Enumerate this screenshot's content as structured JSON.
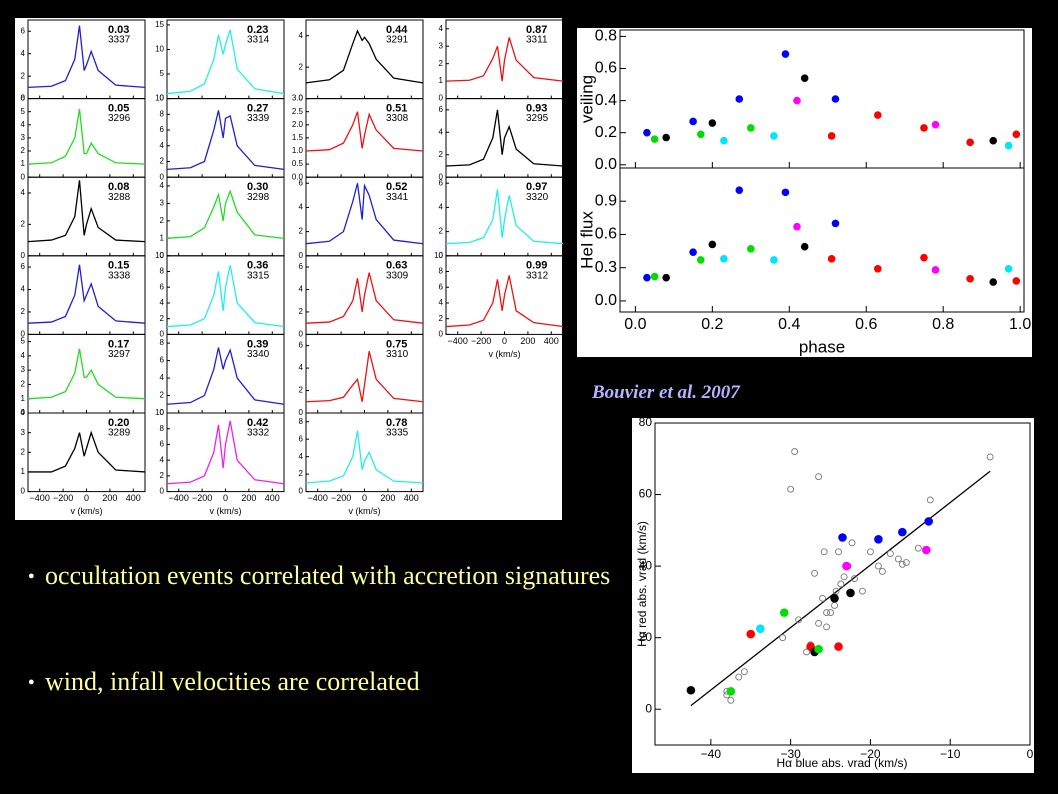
{
  "chart_data": [
    {
      "type": "line",
      "xlabel": "v (km/s)",
      "x": [
        -500,
        -300,
        -180,
        -100,
        -60,
        -20,
        0,
        40,
        100,
        250,
        500
      ],
      "xlim": [
        -500,
        500
      ],
      "xticks": [
        {
          "value": -400,
          "label": "−400"
        },
        {
          "value": -200,
          "label": "−200"
        },
        0,
        200,
        400
      ],
      "panels": [
        {
          "phase": "0.03",
          "id": "3337",
          "color": "#1f1fd6",
          "ylim": [
            0,
            7
          ],
          "yticks": [
            0,
            2,
            4,
            6
          ],
          "values": [
            1,
            1.1,
            1.6,
            3.5,
            6.5,
            2.5,
            3,
            4.2,
            2.5,
            1.2,
            1
          ]
        },
        {
          "phase": "0.05",
          "id": "3296",
          "color": "#22dd22",
          "ylim": [
            0,
            6
          ],
          "yticks": [
            0,
            1,
            2,
            3,
            4,
            5,
            6
          ],
          "values": [
            1,
            1.1,
            1.6,
            3,
            5.2,
            1.8,
            1.8,
            2.6,
            1.8,
            1.1,
            1
          ]
        },
        {
          "phase": "0.08",
          "id": "3288",
          "color": "#000000",
          "ylim": [
            0,
            5
          ],
          "yticks": [
            0,
            2,
            4
          ],
          "values": [
            0.9,
            1,
            1.3,
            2.5,
            4.8,
            1.3,
            2,
            3,
            1.8,
            1,
            0.9
          ]
        },
        {
          "phase": "0.15",
          "id": "3338",
          "color": "#1f1fd6",
          "ylim": [
            0,
            7
          ],
          "yticks": [
            0,
            2,
            4,
            6
          ],
          "values": [
            1,
            1.1,
            1.6,
            3.5,
            6.2,
            3,
            3.5,
            4.5,
            2.5,
            1.2,
            1
          ]
        },
        {
          "phase": "0.17",
          "id": "3297",
          "color": "#22dd22",
          "ylim": [
            0,
            5.5
          ],
          "yticks": [
            0,
            1,
            2,
            3,
            4,
            5
          ],
          "values": [
            1,
            1.1,
            1.5,
            2.8,
            4.5,
            2.5,
            2.5,
            3,
            2,
            1.1,
            1
          ]
        },
        {
          "phase": "0.20",
          "id": "3289",
          "color": "#000000",
          "ylim": [
            0,
            4
          ],
          "yticks": [
            0,
            1,
            2,
            3,
            4
          ],
          "values": [
            1,
            1,
            1.3,
            2.2,
            3,
            1.8,
            2.2,
            3,
            2,
            1.1,
            1
          ]
        },
        {
          "phase": "0.23",
          "id": "3314",
          "color": "#22eeee",
          "ylim": [
            0,
            16
          ],
          "yticks": [
            0,
            5,
            10,
            15
          ],
          "values": [
            1,
            1.5,
            3,
            8,
            13,
            9,
            11,
            14,
            6,
            2,
            1
          ]
        },
        {
          "phase": "0.27",
          "id": "3339",
          "color": "#1f1fd6",
          "ylim": [
            0,
            10
          ],
          "yticks": [
            0,
            2,
            4,
            6,
            8,
            10
          ],
          "values": [
            1,
            1.2,
            2,
            6,
            8.5,
            5,
            7.5,
            7.8,
            4,
            1.5,
            1
          ]
        },
        {
          "phase": "0.30",
          "id": "3298",
          "color": "#22dd22",
          "ylim": [
            0,
            4.5
          ],
          "yticks": [
            0,
            1,
            2,
            3,
            4
          ],
          "values": [
            1,
            1.1,
            1.6,
            2.8,
            3.5,
            2,
            3,
            3.7,
            2.5,
            1.2,
            1
          ]
        },
        {
          "phase": "0.36",
          "id": "3315",
          "color": "#22eeee",
          "ylim": [
            0,
            10
          ],
          "yticks": [
            0,
            2,
            4,
            6,
            8,
            10
          ],
          "values": [
            1,
            1.2,
            2,
            5,
            8,
            3,
            6,
            8.8,
            4,
            1.5,
            1
          ]
        },
        {
          "phase": "0.39",
          "id": "3340",
          "color": "#1f1fd6",
          "ylim": [
            0,
            9
          ],
          "yticks": [
            0,
            2,
            4,
            6,
            8
          ],
          "values": [
            1,
            1.2,
            2,
            5,
            7.5,
            5,
            6,
            7.2,
            4,
            1.5,
            1
          ]
        },
        {
          "phase": "0.42",
          "id": "3332",
          "color": "#ee22ee",
          "ylim": [
            0,
            10
          ],
          "yticks": [
            0,
            2,
            4,
            6,
            8,
            10
          ],
          "values": [
            1,
            1.2,
            2,
            5,
            8.5,
            3,
            6,
            9,
            4,
            1.5,
            1
          ]
        },
        {
          "phase": "0.44",
          "id": "3291",
          "color": "#000000",
          "ylim": [
            0,
            5
          ],
          "yticks": [
            0,
            2,
            4
          ],
          "values": [
            1,
            1.2,
            1.8,
            3.5,
            4.3,
            3.7,
            3.9,
            3.5,
            2.5,
            1.3,
            1
          ]
        },
        {
          "phase": "0.51",
          "id": "3308",
          "color": "#ee1111",
          "ylim": [
            0,
            3
          ],
          "yticks": [
            {
              "value": 0,
              "label": "0.0"
            },
            0.5,
            {
              "value": 1,
              "label": "1.0"
            },
            1.5,
            {
              "value": 2,
              "label": "2.0"
            },
            2.5,
            {
              "value": 3,
              "label": "3.0"
            }
          ],
          "values": [
            1,
            1.05,
            1.3,
            2,
            2.5,
            1.1,
            1.6,
            2.4,
            1.8,
            1.1,
            1
          ]
        },
        {
          "phase": "0.52",
          "id": "3341",
          "color": "#1f1fd6",
          "ylim": [
            0,
            6.5
          ],
          "yticks": [
            0,
            2,
            4,
            6
          ],
          "values": [
            1,
            1.2,
            2,
            4.5,
            6,
            3,
            5.8,
            5,
            3,
            1.3,
            1
          ]
        },
        {
          "phase": "0.63",
          "id": "3309",
          "color": "#ee1111",
          "ylim": [
            0,
            7
          ],
          "yticks": [
            0,
            2,
            4,
            6
          ],
          "values": [
            1,
            1.1,
            1.6,
            3,
            5,
            2,
            3.5,
            5.5,
            3,
            1.3,
            1
          ]
        },
        {
          "phase": "0.75",
          "id": "3310",
          "color": "#ee1111",
          "ylim": [
            0,
            7
          ],
          "yticks": [
            0,
            2,
            4,
            6
          ],
          "values": [
            1,
            1.1,
            1.4,
            2.5,
            3,
            1,
            2.5,
            5.5,
            3,
            1.3,
            1
          ]
        },
        {
          "phase": "0.78",
          "id": "3335",
          "color": "#22eeee",
          "ylim": [
            0,
            9
          ],
          "yticks": [
            0,
            2,
            4,
            6,
            8
          ],
          "values": [
            1,
            1.2,
            1.8,
            4,
            7,
            2.5,
            3.5,
            4.5,
            2.5,
            1.2,
            1
          ]
        },
        {
          "phase": "0.87",
          "id": "3311",
          "color": "#ee1111",
          "ylim": [
            0,
            4.5
          ],
          "yticks": [
            0,
            1,
            2,
            3,
            4
          ],
          "values": [
            1,
            1.05,
            1.3,
            2.3,
            3,
            1,
            2.2,
            3.5,
            2.2,
            1.2,
            1
          ]
        },
        {
          "phase": "0.93",
          "id": "3295",
          "color": "#000000",
          "ylim": [
            0,
            7
          ],
          "yticks": [
            0,
            2,
            4,
            6
          ],
          "values": [
            1,
            1.1,
            1.6,
            3.5,
            6,
            2,
            3.5,
            4.5,
            2.5,
            1.2,
            1
          ]
        },
        {
          "phase": "0.97",
          "id": "3320",
          "color": "#22eeee",
          "ylim": [
            0,
            6.5
          ],
          "yticks": [
            0,
            2,
            4,
            6
          ],
          "values": [
            1,
            1.1,
            1.5,
            3,
            5.5,
            1.5,
            3,
            5,
            2.5,
            1.2,
            1
          ]
        },
        {
          "phase": "0.99",
          "id": "3312",
          "color": "#ee1111",
          "ylim": [
            0,
            10
          ],
          "yticks": [
            0,
            2,
            4,
            6,
            8,
            10
          ],
          "values": [
            1,
            1.2,
            1.8,
            4,
            7,
            3,
            5,
            7.5,
            3,
            1.5,
            1
          ]
        }
      ]
    },
    {
      "type": "scatter",
      "xlabel": "phase",
      "x": [
        0.03,
        0.05,
        0.08,
        0.15,
        0.17,
        0.2,
        0.23,
        0.27,
        0.3,
        0.36,
        0.39,
        0.42,
        0.44,
        0.51,
        0.52,
        0.63,
        0.75,
        0.78,
        0.87,
        0.93,
        0.97,
        0.99
      ],
      "colors": [
        "#0000ff",
        "#00dd00",
        "#000000",
        "#0000ff",
        "#00dd00",
        "#000000",
        "#00e5ff",
        "#0000ff",
        "#00dd00",
        "#00e5ff",
        "#0000ff",
        "#ff00ff",
        "#000000",
        "#ff0000",
        "#0000ff",
        "#ff0000",
        "#ff0000",
        "#ff00ff",
        "#ff0000",
        "#000000",
        "#00e5ff",
        "#ff0000"
      ],
      "xlim": [
        -0.04,
        1.01
      ],
      "xticks": [
        {
          "value": 0,
          "label": "0.0"
        },
        0.2,
        0.4,
        0.6,
        0.8,
        {
          "value": 1,
          "label": "1.0"
        }
      ],
      "panels": [
        {
          "ylabel": "veiling",
          "ylim": [
            -0.02,
            0.84
          ],
          "yticks": [
            {
              "value": 0,
              "label": "0.0"
            },
            0.2,
            0.4,
            0.6,
            0.8
          ],
          "values": [
            0.2,
            0.16,
            0.17,
            0.27,
            0.19,
            0.26,
            0.15,
            0.41,
            0.23,
            0.18,
            0.69,
            0.4,
            0.54,
            0.18,
            0.41,
            0.31,
            0.23,
            0.25,
            0.14,
            0.15,
            0.12,
            0.19
          ]
        },
        {
          "ylabel": "HeI flux",
          "ylim": [
            -0.1,
            1.2
          ],
          "yticks": [
            {
              "value": 0,
              "label": "0.0"
            },
            0.3,
            0.6,
            0.9
          ],
          "values": [
            0.21,
            0.22,
            0.21,
            0.44,
            0.37,
            0.51,
            0.38,
            1.0,
            0.47,
            0.37,
            0.98,
            0.67,
            0.49,
            0.38,
            0.7,
            0.29,
            0.39,
            0.28,
            0.2,
            0.17,
            0.29,
            0.18
          ]
        }
      ]
    },
    {
      "type": "scatter",
      "xlabel": "Hα blue abs. vrad (km/s)",
      "ylabel": "Hα red abs. vrad (km/s)",
      "xlim": [
        -47,
        0
      ],
      "ylim": [
        -10,
        80
      ],
      "xticks": [
        {
          "value": -40,
          "label": "−40"
        },
        {
          "value": -30,
          "label": "−30"
        },
        {
          "value": -20,
          "label": "−20"
        },
        {
          "value": -10,
          "label": "−10"
        },
        0
      ],
      "yticks": [
        0,
        20,
        40,
        60,
        80
      ],
      "open_points": {
        "color": "#777777",
        "x": [
          -38,
          -37.5,
          -38,
          -36.5,
          -35.8,
          -31,
          -30,
          -29.5,
          -29,
          -27.5,
          -27,
          -26.5,
          -26.5,
          -26,
          -25.8,
          -25.5,
          -25,
          -24.5,
          -24.3,
          -24,
          -23.7,
          -23.3,
          -22.8,
          -22.3,
          -22,
          -21,
          -20,
          -19,
          -18.5,
          -17.5,
          -16.5,
          -16,
          -15.5,
          -14,
          -12.5,
          -5,
          -28,
          -25.5
        ],
        "values": [
          5,
          2.5,
          4,
          9,
          10.5,
          20,
          61.5,
          72,
          25,
          18,
          38,
          65,
          24,
          31,
          44,
          23,
          27,
          29,
          33,
          44,
          35,
          37,
          40,
          46.5,
          36.5,
          33,
          44,
          40,
          38.5,
          43.5,
          42,
          40.5,
          41,
          45,
          58.5,
          70.5,
          16,
          27
        ]
      },
      "points": {
        "x": [
          -42.5,
          -37.5,
          -35,
          -33.8,
          -30.8,
          -27.5,
          -27,
          -26.5,
          -24.5,
          -24,
          -23.5,
          -23,
          -22.5,
          -19,
          -16,
          -13,
          -12.7
        ],
        "values": [
          5.3,
          5,
          21,
          22.5,
          27,
          17.5,
          16,
          16.8,
          31,
          17.5,
          48,
          40,
          32.5,
          47.5,
          49.5,
          44.5,
          52.5
        ],
        "colors": [
          "#000000",
          "#00dd00",
          "#ff0000",
          "#00e5ff",
          "#00dd00",
          "#ff0000",
          "#000000",
          "#00dd00",
          "#000000",
          "#ff0000",
          "#0000ff",
          "#ff00ff",
          "#000000",
          "#0000ff",
          "#0000ff",
          "#ff00ff",
          "#0000ff"
        ]
      },
      "fit_line": {
        "color": "#000000",
        "x": [
          -42.5,
          -5
        ],
        "values": [
          1,
          66.5
        ]
      }
    }
  ],
  "citation": "Bouvier et al. 2007",
  "bullets": [
    "occultation events correlated with accretion signatures",
    "wind, infall velocities are correlated"
  ]
}
